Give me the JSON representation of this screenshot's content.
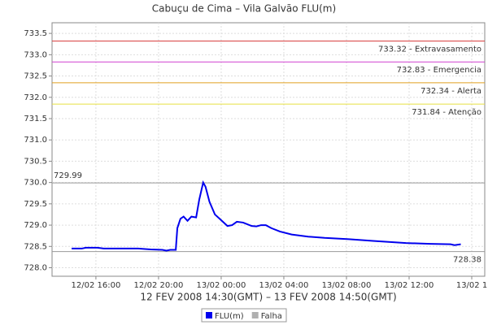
{
  "chart_data": {
    "type": "line",
    "title": "Cabuçu de Cima – Vila Galvão FLU(m)",
    "x_label": "12 FEV 2008 14:30(GMT) – 13 FEV 2008 14:50(GMT)",
    "x": [
      14.45,
      15.1,
      15.35,
      16.1,
      16.5,
      18.7,
      19.5,
      20.25,
      20.5,
      20.75,
      21.1,
      21.2,
      21.4,
      21.6,
      21.85,
      22.1,
      22.4,
      22.6,
      22.85,
      23.0,
      23.25,
      23.6,
      24.05,
      24.4,
      24.7,
      25.0,
      25.4,
      25.95,
      26.25,
      26.55,
      26.85,
      27.2,
      27.75,
      28.5,
      29.55,
      30.6,
      32.15,
      33.7,
      35.8,
      37.35,
      38.65,
      38.9,
      39.3
    ],
    "series": [
      {
        "name": "FLU(m)",
        "color": "#0000ee",
        "values": [
          728.45,
          728.45,
          728.47,
          728.47,
          728.45,
          728.45,
          728.43,
          728.42,
          728.4,
          728.42,
          728.42,
          728.93,
          729.15,
          729.2,
          729.1,
          729.2,
          729.18,
          729.6,
          730.0,
          729.9,
          729.55,
          729.25,
          729.1,
          728.98,
          729.0,
          729.08,
          729.06,
          728.98,
          728.97,
          729.0,
          729.0,
          728.93,
          728.85,
          728.78,
          728.73,
          728.7,
          728.67,
          728.63,
          728.58,
          728.56,
          728.55,
          728.53,
          728.55
        ]
      }
    ],
    "extra_legend": [
      {
        "name": "Falha",
        "color": "#b0b0b0"
      }
    ],
    "thresholds": [
      {
        "value": 733.32,
        "label": "733.32 - Extravasamento",
        "color": "#d94040"
      },
      {
        "value": 732.83,
        "label": "732.83 - Emergencia",
        "color": "#d040d0"
      },
      {
        "value": 732.34,
        "label": "732.34 - Alerta",
        "color": "#e0a020"
      },
      {
        "value": 731.84,
        "label": "731.84 - Atenção",
        "color": "#e8e040"
      }
    ],
    "max_line": {
      "value": 729.99,
      "label": "729.99",
      "color": "#999999"
    },
    "min_line": {
      "value": 728.38,
      "label": "728.38",
      "color": "#999999"
    },
    "xlim": [
      13.2,
      40.83
    ],
    "ylim": [
      727.8,
      733.75
    ],
    "xticks": [
      {
        "value": 16,
        "label": "12/02 16:00"
      },
      {
        "value": 20,
        "label": "12/02 20:00"
      },
      {
        "value": 24,
        "label": "13/02 00:00"
      },
      {
        "value": 28,
        "label": "13/02 04:00"
      },
      {
        "value": 32,
        "label": "13/02 08:00"
      },
      {
        "value": 36,
        "label": "13/02 12:00"
      },
      {
        "value": 40,
        "label": "13/02 1"
      }
    ],
    "yticks": [
      {
        "value": 728,
        "label": "728.0"
      },
      728.5,
      {
        "value": 729,
        "label": "729.0"
      },
      729.5,
      {
        "value": 730,
        "label": "730.0"
      },
      730.5,
      {
        "value": 731,
        "label": "731.0"
      },
      731.5,
      {
        "value": 732,
        "label": "732.0"
      },
      732.5,
      {
        "value": 733,
        "label": "733.0"
      },
      733.5
    ],
    "grid": true
  }
}
